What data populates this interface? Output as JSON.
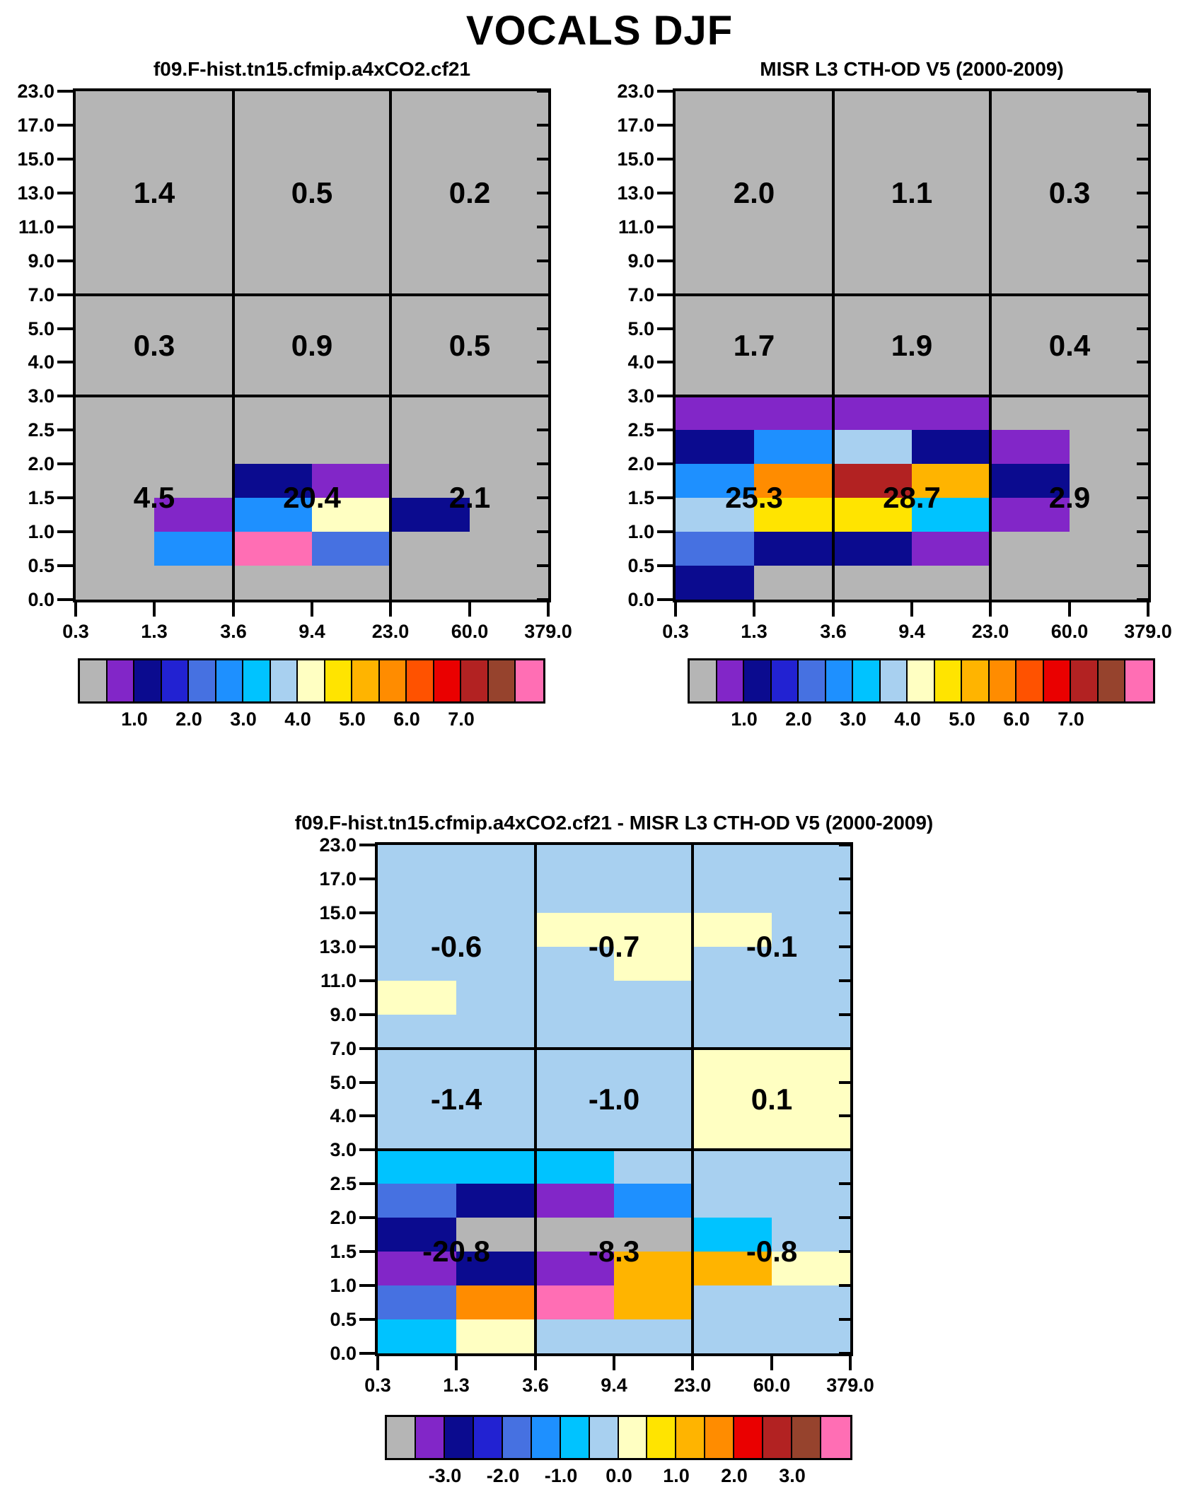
{
  "title": "VOCALS DJF",
  "axes": {
    "y_ticks": [
      "23.0",
      "17.0",
      "15.0",
      "13.0",
      "11.0",
      "9.0",
      "7.0",
      "5.0",
      "4.0",
      "3.0",
      "2.5",
      "2.0",
      "1.5",
      "1.0",
      "0.5",
      "0.0"
    ],
    "x_ticks": [
      "0.3",
      "1.3",
      "3.6",
      "9.4",
      "23.0",
      "60.0",
      "379.0"
    ]
  },
  "palette": {
    "G": "#b5b5b5",
    "V": "#8226c8",
    "N": "#0b0b8f",
    "B": "#2222d2",
    "R": "#4671e1",
    "D": "#1e90ff",
    "C": "#00c3ff",
    "L": "#a8d0f0",
    "Y0": "#ffffc2",
    "Y1": "#ffe400",
    "O1": "#ffb400",
    "O2": "#ff8c00",
    "O3": "#ff5200",
    "R1": "#ea0000",
    "R2": "#b22222",
    "BR": "#96432d",
    "PK": "#ff6eb4"
  },
  "colorbars": {
    "pct": {
      "colors": [
        "G",
        "V",
        "N",
        "B",
        "R",
        "D",
        "C",
        "L",
        "Y0",
        "Y1",
        "O1",
        "O2",
        "O3",
        "R1",
        "R2",
        "BR",
        "PK"
      ],
      "labels": [
        "1.0",
        "2.0",
        "3.0",
        "4.0",
        "5.0",
        "6.0",
        "7.0"
      ]
    },
    "diff": {
      "colors": [
        "G",
        "V",
        "N",
        "B",
        "R",
        "D",
        "C",
        "L",
        "Y0",
        "Y1",
        "O1",
        "O2",
        "R1",
        "R2",
        "BR",
        "PK"
      ],
      "labels": [
        "-3.0",
        "-2.0",
        "-1.0",
        "0.0",
        "1.0",
        "2.0",
        "3.0"
      ]
    }
  },
  "chart_data": [
    {
      "type": "heatmap",
      "panel": "model",
      "title": "f09.F-hist.tn15.cfmip.a4xCO2.cf21",
      "colorbar": "pct",
      "x_bin_edges": [
        0.3,
        1.3,
        3.6,
        9.4,
        23.0,
        60.0,
        379.0
      ],
      "y_bin_edges": [
        0.0,
        0.5,
        1.0,
        1.5,
        2.0,
        2.5,
        3.0,
        4.0,
        5.0,
        7.0,
        9.0,
        11.0,
        13.0,
        15.0,
        17.0,
        23.0
      ],
      "grid_rows_top_to_bottom": true,
      "grid": [
        [
          "G",
          "G",
          "G",
          "G",
          "G",
          "G"
        ],
        [
          "G",
          "G",
          "G",
          "G",
          "G",
          "G"
        ],
        [
          "G",
          "G",
          "G",
          "G",
          "G",
          "G"
        ],
        [
          "G",
          "G",
          "G",
          "G",
          "G",
          "G"
        ],
        [
          "G",
          "G",
          "G",
          "G",
          "G",
          "G"
        ],
        [
          "G",
          "G",
          "G",
          "G",
          "G",
          "G"
        ],
        [
          "G",
          "G",
          "G",
          "G",
          "G",
          "G"
        ],
        [
          "G",
          "G",
          "G",
          "G",
          "G",
          "G"
        ],
        [
          "G",
          "G",
          "G",
          "G",
          "G",
          "G"
        ],
        [
          "G",
          "G",
          "G",
          "G",
          "G",
          "G"
        ],
        [
          "G",
          "G",
          "G",
          "G",
          "G",
          "G"
        ],
        [
          "G",
          "G",
          "N",
          "V",
          "G",
          "G"
        ],
        [
          "G",
          "V",
          "D",
          "Y0",
          "N",
          "G"
        ],
        [
          "G",
          "D",
          "PK",
          "R",
          "G",
          "G"
        ],
        [
          "G",
          "G",
          "G",
          "G",
          "G",
          "G"
        ]
      ],
      "block_values": [
        [
          "1.4",
          "0.5",
          "0.2"
        ],
        [
          "0.3",
          "0.9",
          "0.5"
        ],
        [
          "4.5",
          "20.4",
          "2.1"
        ]
      ]
    },
    {
      "type": "heatmap",
      "panel": "observations",
      "title": "MISR L3 CTH-OD V5 (2000-2009)",
      "colorbar": "pct",
      "x_bin_edges": [
        0.3,
        1.3,
        3.6,
        9.4,
        23.0,
        60.0,
        379.0
      ],
      "y_bin_edges": [
        0.0,
        0.5,
        1.0,
        1.5,
        2.0,
        2.5,
        3.0,
        4.0,
        5.0,
        7.0,
        9.0,
        11.0,
        13.0,
        15.0,
        17.0,
        23.0
      ],
      "grid_rows_top_to_bottom": true,
      "grid": [
        [
          "G",
          "G",
          "G",
          "G",
          "G",
          "G"
        ],
        [
          "G",
          "G",
          "G",
          "G",
          "G",
          "G"
        ],
        [
          "G",
          "G",
          "G",
          "G",
          "G",
          "G"
        ],
        [
          "G",
          "G",
          "G",
          "G",
          "G",
          "G"
        ],
        [
          "G",
          "G",
          "G",
          "G",
          "G",
          "G"
        ],
        [
          "G",
          "G",
          "G",
          "G",
          "G",
          "G"
        ],
        [
          "G",
          "G",
          "G",
          "G",
          "G",
          "G"
        ],
        [
          "G",
          "G",
          "G",
          "G",
          "G",
          "G"
        ],
        [
          "G",
          "G",
          "G",
          "G",
          "G",
          "G"
        ],
        [
          "V",
          "V",
          "V",
          "V",
          "G",
          "G"
        ],
        [
          "N",
          "D",
          "L",
          "N",
          "V",
          "G"
        ],
        [
          "D",
          "O2",
          "R2",
          "O1",
          "N",
          "G"
        ],
        [
          "L",
          "Y1",
          "Y1",
          "C",
          "V",
          "G"
        ],
        [
          "R",
          "N",
          "N",
          "V",
          "G",
          "G"
        ],
        [
          "N",
          "G",
          "G",
          "G",
          "G",
          "G"
        ]
      ],
      "block_values": [
        [
          "2.0",
          "1.1",
          "0.3"
        ],
        [
          "1.7",
          "1.9",
          "0.4"
        ],
        [
          "25.3",
          "28.7",
          "2.9"
        ]
      ]
    },
    {
      "type": "heatmap",
      "panel": "difference",
      "title": "f09.F-hist.tn15.cfmip.a4xCO2.cf21 - MISR L3 CTH-OD V5 (2000-2009)",
      "colorbar": "diff",
      "x_bin_edges": [
        0.3,
        1.3,
        3.6,
        9.4,
        23.0,
        60.0,
        379.0
      ],
      "y_bin_edges": [
        0.0,
        0.5,
        1.0,
        1.5,
        2.0,
        2.5,
        3.0,
        4.0,
        5.0,
        7.0,
        9.0,
        11.0,
        13.0,
        15.0,
        17.0,
        23.0
      ],
      "grid_rows_top_to_bottom": true,
      "grid": [
        [
          "L",
          "L",
          "L",
          "L",
          "L",
          "L"
        ],
        [
          "L",
          "L",
          "L",
          "L",
          "L",
          "L"
        ],
        [
          "L",
          "L",
          "Y0",
          "Y0",
          "Y0",
          "L"
        ],
        [
          "L",
          "L",
          "L",
          "Y0",
          "L",
          "L"
        ],
        [
          "Y0",
          "L",
          "L",
          "L",
          "L",
          "L"
        ],
        [
          "L",
          "L",
          "L",
          "L",
          "L",
          "L"
        ],
        [
          "L",
          "L",
          "L",
          "L",
          "Y0",
          "Y0"
        ],
        [
          "L",
          "L",
          "L",
          "L",
          "Y0",
          "Y0"
        ],
        [
          "L",
          "L",
          "L",
          "L",
          "Y0",
          "Y0"
        ],
        [
          "C",
          "C",
          "C",
          "L",
          "L",
          "L"
        ],
        [
          "R",
          "N",
          "V",
          "D",
          "L",
          "L"
        ],
        [
          "N",
          "G",
          "G",
          "G",
          "C",
          "L"
        ],
        [
          "V",
          "N",
          "V",
          "O1",
          "O1",
          "Y0"
        ],
        [
          "R",
          "O2",
          "PK",
          "O1",
          "L",
          "L"
        ],
        [
          "C",
          "Y0",
          "L",
          "L",
          "L",
          "L"
        ]
      ],
      "block_values": [
        [
          "-0.6",
          "-0.7",
          "-0.1"
        ],
        [
          "-1.4",
          "-1.0",
          "0.1"
        ],
        [
          "-20.8",
          "-8.3",
          "-0.8"
        ]
      ]
    }
  ]
}
